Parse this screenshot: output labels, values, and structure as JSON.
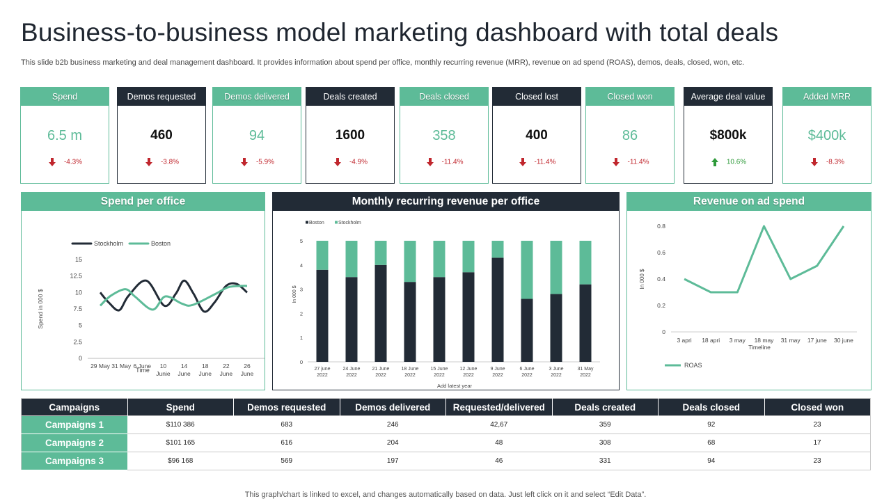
{
  "page": {
    "title": "Business-to-business model marketing dashboard with total deals",
    "subtitle": "This slide b2b business marketing and deal management dashboard. It provides information about spend per office, monthly recurring revenue (MRR), revenue on ad spend (ROAS), demos, deals, closed, won, etc.",
    "footer": "This graph/chart is linked to excel, and changes automatically based on data. Just left click on it and select “Edit Data”."
  },
  "colors": {
    "green": "#5dbb98",
    "dark": "#222b36",
    "down": "#c0262d",
    "up": "#2e9a3a"
  },
  "kpis": [
    {
      "label": "Spend",
      "value": "6.5 m",
      "change": "-4.3%",
      "direction": "down",
      "style": "green"
    },
    {
      "label": "Demos requested",
      "value": "460",
      "change": "-3.8%",
      "direction": "down",
      "style": "dark"
    },
    {
      "label": "Demos delivered",
      "value": "94",
      "change": "-5.9%",
      "direction": "down",
      "style": "green"
    },
    {
      "label": "Deals created",
      "value": "1600",
      "change": "-4.9%",
      "direction": "down",
      "style": "dark"
    },
    {
      "label": "Deals closed",
      "value": "358",
      "change": "-11.4%",
      "direction": "down",
      "style": "green"
    },
    {
      "label": "Closed lost",
      "value": "400",
      "change": "-11.4%",
      "direction": "down",
      "style": "dark"
    },
    {
      "label": "Closed won",
      "value": "86",
      "change": "-11.4%",
      "direction": "down",
      "style": "green"
    },
    {
      "label": "Average deal value",
      "value": "$800k",
      "change": "10.6%",
      "direction": "up",
      "style": "dark"
    },
    {
      "label": "Added MRR",
      "value": "$400k",
      "change": "-8.3%",
      "direction": "down",
      "style": "green"
    }
  ],
  "panels": {
    "spend": {
      "title": "Spend per office"
    },
    "mrr": {
      "title": "Monthly recurring revenue per office"
    },
    "roas": {
      "title": "Revenue on ad spend"
    }
  },
  "chart_data": [
    {
      "type": "line",
      "title": "Spend per office",
      "xlabel": "Time",
      "ylabel": "Spend in 000 $",
      "x": [
        "29 May",
        "31 May",
        "6 June",
        "10 Junie",
        "14 June",
        "18 June",
        "22 June",
        "26 June"
      ],
      "yticks": [
        "0",
        "2.5",
        "5",
        "7.5",
        "10",
        "12.5",
        "15"
      ],
      "ylim": [
        0,
        15
      ],
      "legend": "top",
      "series": [
        {
          "name": "Stockholm",
          "color": "#222b36",
          "points": [
            [
              0,
              10
            ],
            [
              0.4,
              8.5
            ],
            [
              0.9,
              7.3
            ],
            [
              1.35,
              9.5
            ],
            [
              2.2,
              11.8
            ],
            [
              3.05,
              8
            ],
            [
              3.6,
              9.8
            ],
            [
              4.0,
              11.8
            ],
            [
              4.45,
              9.8
            ],
            [
              4.95,
              7.1
            ],
            [
              5.45,
              8.5
            ],
            [
              6.0,
              11
            ],
            [
              6.5,
              11.3
            ],
            [
              7.0,
              10
            ]
          ]
        },
        {
          "name": "Boston",
          "color": "#5dbb98",
          "points": [
            [
              0,
              8
            ],
            [
              0.5,
              9.5
            ],
            [
              1.2,
              10.5
            ],
            [
              1.65,
              9.4
            ],
            [
              2.5,
              7.4
            ],
            [
              3.1,
              9.4
            ],
            [
              3.9,
              8.3
            ],
            [
              4.4,
              8.1
            ],
            [
              5.5,
              9.8
            ],
            [
              6.1,
              10.8
            ],
            [
              6.75,
              11
            ],
            [
              7.0,
              11
            ]
          ]
        }
      ]
    },
    {
      "type": "bar",
      "title": "Monthly recurring revenue per office",
      "xlabel": "Add latest year",
      "ylabel": "In 000 $",
      "stacked": true,
      "categories": [
        "27 june 2022",
        "24 June 2022",
        "21 June 2022",
        "18 June 2022",
        "15 June 2022",
        "12 June 2022",
        "9 June 2022",
        "6 June 2022",
        "3 June 2022",
        "31 May 2022"
      ],
      "yticks": [
        "0",
        "1",
        "2",
        "3",
        "4",
        "5"
      ],
      "ylim": [
        0,
        5
      ],
      "legend": "top-left",
      "series": [
        {
          "name": "Boston",
          "color": "#222b36",
          "values": [
            3.8,
            3.5,
            4.0,
            3.3,
            3.5,
            3.7,
            4.3,
            2.6,
            2.8,
            3.2
          ]
        },
        {
          "name": "Stockholm",
          "color": "#5dbb98",
          "values": [
            1.2,
            1.5,
            1.0,
            1.7,
            1.5,
            1.3,
            0.7,
            2.4,
            2.2,
            1.8
          ]
        }
      ]
    },
    {
      "type": "line",
      "title": "Revenue on ad spend",
      "xlabel": "Timeline",
      "ylabel": "In 000 $",
      "categories": [
        "3 apri",
        "18 apri",
        "3 may",
        "18 may",
        "31 may",
        "17 june",
        "30 june"
      ],
      "yticks": [
        "0",
        "0.2",
        "0.4",
        "0.6",
        "0.8"
      ],
      "ylim": [
        0,
        0.8
      ],
      "legend": "bottom-left",
      "series": [
        {
          "name": "ROAS",
          "color": "#5dbb98",
          "values": [
            0.4,
            0.3,
            0.3,
            0.8,
            0.4,
            0.5,
            0.8
          ]
        }
      ]
    }
  ],
  "table": {
    "headers": [
      "Campaigns",
      "Spend",
      "Demos requested",
      "Demos delivered",
      "Requested/delivered",
      "Deals created",
      "Deals closed",
      "Closed won"
    ],
    "rows": [
      [
        "Campaigns 1",
        "$110 386",
        "683",
        "246",
        "42,67",
        "359",
        "92",
        "23"
      ],
      [
        "Campaigns 2",
        "$101 165",
        "616",
        "204",
        "48",
        "308",
        "68",
        "17"
      ],
      [
        "Campaigns 3",
        "$96 168",
        "569",
        "197",
        "46",
        "331",
        "94",
        "23"
      ]
    ]
  }
}
